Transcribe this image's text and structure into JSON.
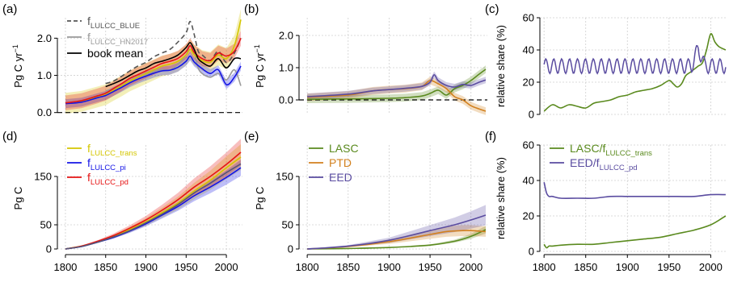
{
  "chart_data": [
    {
      "panel": "(a)",
      "type": "line",
      "ylabel": "Pg C yr",
      "ylabel_sup": "−1",
      "xlim": [
        1790,
        2020
      ],
      "ylim": [
        -0.05,
        2.55
      ],
      "yticks": [
        0.0,
        1.0,
        2.0
      ],
      "ytick_labels": [
        "0.0",
        "1.0",
        "2.0"
      ],
      "xticks": [],
      "grid": true,
      "hline_zero": true,
      "legend": [
        {
          "main": "f",
          "sub": "LULCC_BLUE",
          "style": "dashed",
          "color": "#555555",
          "text_color": "#555555"
        },
        {
          "main": "f",
          "sub": "LULCC_HN2017",
          "style": "solid",
          "color": "#9a9a9a",
          "text_color": "#9a9a9a"
        },
        {
          "main": "book mean",
          "sub": "",
          "style": "solid",
          "color": "#000000",
          "text_color": "#000000"
        }
      ],
      "series": [
        {
          "name": "fLULCC_BLUE",
          "color": "#555555",
          "dash": true,
          "x": [
            1850,
            1860,
            1870,
            1880,
            1890,
            1900,
            1910,
            1920,
            1930,
            1940,
            1950,
            1955,
            1960,
            1965,
            1970,
            1980,
            1990,
            2000,
            2010,
            2018
          ],
          "y": [
            0.78,
            0.85,
            0.98,
            1.12,
            1.25,
            1.35,
            1.5,
            1.6,
            1.7,
            1.9,
            2.15,
            2.45,
            2.1,
            1.65,
            1.55,
            1.4,
            1.65,
            1.35,
            1.6,
            2.0
          ]
        },
        {
          "name": "fLULCC_HN2017",
          "color": "#9a9a9a",
          "x": [
            1850,
            1860,
            1870,
            1880,
            1890,
            1900,
            1910,
            1920,
            1930,
            1940,
            1950,
            1955,
            1960,
            1965,
            1970,
            1980,
            1990,
            2000,
            2010,
            2018
          ],
          "y": [
            0.58,
            0.65,
            0.72,
            0.82,
            0.95,
            1.02,
            1.1,
            1.15,
            1.15,
            1.3,
            1.55,
            1.8,
            1.6,
            1.2,
            1.05,
            0.95,
            1.05,
            0.88,
            1.15,
            0.72
          ]
        },
        {
          "name": "fLULCC_trans",
          "color": "#d4c600",
          "band": 0.28,
          "x": [
            1800,
            1820,
            1840,
            1850,
            1860,
            1870,
            1880,
            1890,
            1900,
            1910,
            1920,
            1930,
            1940,
            1950,
            1955,
            1960,
            1970,
            1980,
            1990,
            2000,
            2010,
            2018
          ],
          "y": [
            0.25,
            0.3,
            0.42,
            0.48,
            0.6,
            0.72,
            0.85,
            0.95,
            1.05,
            1.15,
            1.25,
            1.3,
            1.38,
            1.55,
            1.7,
            1.55,
            1.4,
            1.35,
            1.55,
            1.45,
            1.8,
            2.5
          ]
        },
        {
          "name": "fLULCC_pi",
          "color": "#1414e6",
          "band": 0.12,
          "x": [
            1800,
            1820,
            1840,
            1850,
            1860,
            1870,
            1880,
            1890,
            1900,
            1910,
            1920,
            1930,
            1940,
            1950,
            1955,
            1960,
            1970,
            1980,
            1990,
            2000,
            2010,
            2018
          ],
          "y": [
            0.24,
            0.28,
            0.4,
            0.46,
            0.57,
            0.68,
            0.8,
            0.9,
            0.98,
            1.06,
            1.12,
            1.14,
            1.22,
            1.38,
            1.52,
            1.36,
            1.18,
            1.05,
            1.15,
            0.75,
            0.95,
            1.25
          ]
        },
        {
          "name": "fLULCC_pd",
          "color": "#e61414",
          "band": 0.2,
          "x": [
            1800,
            1820,
            1840,
            1850,
            1860,
            1870,
            1880,
            1890,
            1900,
            1910,
            1920,
            1930,
            1940,
            1950,
            1955,
            1960,
            1970,
            1980,
            1990,
            2000,
            2010,
            2018
          ],
          "y": [
            0.26,
            0.32,
            0.45,
            0.52,
            0.65,
            0.78,
            0.92,
            1.02,
            1.12,
            1.22,
            1.32,
            1.38,
            1.46,
            1.64,
            1.8,
            1.62,
            1.45,
            1.4,
            1.6,
            1.52,
            1.65,
            2.0
          ]
        },
        {
          "name": "book mean",
          "color": "#000000",
          "x": [
            1850,
            1860,
            1870,
            1880,
            1890,
            1900,
            1910,
            1920,
            1930,
            1940,
            1950,
            1955,
            1960,
            1965,
            1970,
            1980,
            1990,
            2000,
            2010,
            2018
          ],
          "y": [
            0.7,
            0.78,
            0.88,
            1.0,
            1.12,
            1.2,
            1.32,
            1.38,
            1.45,
            1.55,
            1.75,
            1.88,
            1.7,
            1.45,
            1.35,
            1.25,
            1.45,
            1.2,
            1.45,
            1.45
          ]
        }
      ]
    },
    {
      "panel": "(b)",
      "type": "line",
      "ylabel": "Pg C yr",
      "ylabel_sup": "−1",
      "xlim": [
        1790,
        2020
      ],
      "ylim": [
        -0.45,
        2.55
      ],
      "yticks": [
        0.0,
        1.0,
        2.0
      ],
      "ytick_labels": [
        "0.0",
        "1.0",
        "2.0"
      ],
      "xticks": [],
      "grid": true,
      "hline_zero": true,
      "legend": [],
      "series": [
        {
          "name": "LASC",
          "color": "#5a8a1e",
          "band": 0.12,
          "x": [
            1800,
            1850,
            1900,
            1920,
            1940,
            1950,
            1960,
            1970,
            1980,
            1990,
            2000,
            2010,
            2018
          ],
          "y": [
            0.02,
            0.03,
            0.05,
            0.07,
            0.12,
            0.2,
            0.3,
            0.15,
            0.35,
            0.45,
            0.6,
            0.8,
            0.95
          ]
        },
        {
          "name": "PTD",
          "color": "#d2801e",
          "band": 0.12,
          "x": [
            1800,
            1850,
            1880,
            1900,
            1920,
            1940,
            1950,
            1960,
            1970,
            1980,
            1990,
            2000,
            2010,
            2018
          ],
          "y": [
            0.08,
            0.15,
            0.28,
            0.32,
            0.35,
            0.42,
            0.6,
            0.5,
            0.35,
            0.1,
            0.0,
            -0.18,
            -0.28,
            -0.35
          ]
        },
        {
          "name": "EED",
          "color": "#5a4ca0",
          "band": 0.1,
          "x": [
            1800,
            1850,
            1880,
            1900,
            1920,
            1940,
            1950,
            1955,
            1960,
            1970,
            1980,
            1990,
            2000,
            2010,
            2018
          ],
          "y": [
            0.1,
            0.18,
            0.28,
            0.32,
            0.36,
            0.42,
            0.55,
            0.78,
            0.6,
            0.45,
            0.4,
            0.48,
            0.45,
            0.55,
            0.62
          ]
        }
      ]
    },
    {
      "panel": "(c)",
      "type": "line",
      "ylabel": "relative share (%)",
      "xlim": [
        1795,
        2020
      ],
      "ylim": [
        0,
        60
      ],
      "yticks": [
        0,
        20,
        40,
        60
      ],
      "ytick_labels": [
        "0",
        "20",
        "40",
        "60"
      ],
      "xticks": [],
      "grid": true,
      "legend": [],
      "series": [
        {
          "name": "LASC share",
          "color": "#5a8a1e",
          "x": [
            1800,
            1810,
            1820,
            1830,
            1840,
            1850,
            1860,
            1870,
            1880,
            1890,
            1900,
            1910,
            1920,
            1930,
            1940,
            1950,
            1955,
            1960,
            1965,
            1970,
            1975,
            1980,
            1985,
            1990,
            1995,
            2000,
            2005,
            2010,
            2018
          ],
          "y": [
            2,
            6,
            4,
            6,
            5,
            4,
            7,
            8,
            9,
            11,
            12,
            14,
            15,
            16,
            18,
            21,
            19,
            17,
            19,
            24,
            26,
            28,
            30,
            32,
            40,
            50,
            45,
            42,
            40
          ]
        },
        {
          "name": "EED share",
          "color": "#5a4ca0",
          "periodic": true,
          "x0": 1800,
          "x1": 2018,
          "base": 31,
          "amp": 4.5,
          "period": 9.5,
          "bump_x": 1985,
          "bump_y": 42
        }
      ]
    },
    {
      "panel": "(d)",
      "type": "line",
      "ylabel": "Pg C",
      "xlim": [
        1790,
        2020
      ],
      "ylim": [
        -5,
        215
      ],
      "yticks": [
        0,
        50,
        150
      ],
      "ytick_labels": [
        "0",
        "50",
        "150"
      ],
      "xticks": [
        1800,
        1850,
        1900,
        1950,
        2000
      ],
      "xtick_labels": [
        "1800",
        "1850",
        "1900",
        "1950",
        "2000"
      ],
      "grid": true,
      "legend": [
        {
          "main": "f",
          "sub": "LULCC_trans",
          "style": "solid",
          "color": "#d4c600",
          "text_color": "#d4c600"
        },
        {
          "main": "f",
          "sub": "LULCC_pi",
          "style": "solid",
          "color": "#1414e6",
          "text_color": "#1414e6"
        },
        {
          "main": "f",
          "sub": "LULCC_pd",
          "style": "solid",
          "color": "#e61414",
          "text_color": "#e61414"
        }
      ],
      "series": [
        {
          "name": "fLULCC_trans",
          "color": "#d4c600",
          "band_frac": 0.14,
          "x": [
            1800,
            1820,
            1840,
            1860,
            1880,
            1900,
            1920,
            1940,
            1960,
            1980,
            2000,
            2018
          ],
          "y": [
            0,
            6,
            15,
            26,
            40,
            56,
            75,
            95,
            120,
            142,
            168,
            190
          ]
        },
        {
          "name": "fLULCC_pi",
          "color": "#1414e6",
          "band_frac": 0.1,
          "x": [
            1800,
            1820,
            1840,
            1860,
            1880,
            1900,
            1920,
            1940,
            1960,
            1980,
            2000,
            2018
          ],
          "y": [
            0,
            5,
            14,
            24,
            37,
            52,
            70,
            88,
            110,
            128,
            148,
            168
          ]
        },
        {
          "name": "fLULCC_pd",
          "color": "#e61414",
          "band_frac": 0.14,
          "x": [
            1800,
            1820,
            1840,
            1860,
            1880,
            1900,
            1920,
            1940,
            1960,
            1980,
            2000,
            2018
          ],
          "y": [
            0,
            6,
            16,
            28,
            43,
            60,
            80,
            102,
            128,
            150,
            175,
            200
          ]
        },
        {
          "name": "mean",
          "color": "#555577",
          "x": [
            1800,
            1820,
            1840,
            1860,
            1880,
            1900,
            1920,
            1940,
            1960,
            1980,
            2000,
            2018
          ],
          "y": [
            0,
            5,
            14,
            25,
            38,
            54,
            72,
            92,
            116,
            136,
            158,
            176
          ]
        }
      ]
    },
    {
      "panel": "(e)",
      "type": "line",
      "ylabel": "Pg C",
      "xlim": [
        1790,
        2020
      ],
      "ylim": [
        -5,
        215
      ],
      "yticks": [
        0,
        50,
        150
      ],
      "ytick_labels": [
        "0",
        "50",
        "150"
      ],
      "xticks": [
        1800,
        1850,
        1900,
        1950,
        2000
      ],
      "xtick_labels": [
        "1800",
        "1850",
        "1900",
        "1950",
        "2000"
      ],
      "grid": true,
      "legend": [
        {
          "main": "LASC",
          "sub": "",
          "style": "solid",
          "color": "#5a8a1e",
          "text_color": "#5a8a1e"
        },
        {
          "main": "PTD",
          "sub": "",
          "style": "solid",
          "color": "#d2801e",
          "text_color": "#d2801e"
        },
        {
          "main": "EED",
          "sub": "",
          "style": "solid",
          "color": "#5a4ca0",
          "text_color": "#5a4ca0"
        }
      ],
      "series": [
        {
          "name": "LASC",
          "color": "#5a8a1e",
          "band_frac": 0.2,
          "x": [
            1800,
            1850,
            1900,
            1950,
            1980,
            2000,
            2018
          ],
          "y": [
            0,
            1,
            3,
            8,
            16,
            26,
            40
          ]
        },
        {
          "name": "PTD",
          "color": "#d2801e",
          "band_frac": 0.3,
          "x": [
            1800,
            1850,
            1900,
            1950,
            1970,
            1990,
            2000,
            2018
          ],
          "y": [
            0,
            5,
            15,
            30,
            36,
            38,
            38,
            36
          ]
        },
        {
          "name": "EED",
          "color": "#5a4ca0",
          "band_frac": 0.3,
          "x": [
            1800,
            1850,
            1900,
            1950,
            1980,
            2000,
            2018
          ],
          "y": [
            0,
            6,
            18,
            38,
            50,
            60,
            70
          ]
        }
      ]
    },
    {
      "panel": "(f)",
      "type": "line",
      "ylabel": "relative share (%)",
      "xlim": [
        1795,
        2020
      ],
      "ylim": [
        0,
        60
      ],
      "yticks": [
        0,
        20,
        40,
        60
      ],
      "ytick_labels": [
        "0",
        "20",
        "40",
        "60"
      ],
      "xticks": [
        1800,
        1850,
        1900,
        1950,
        2000
      ],
      "xtick_labels": [
        "1800",
        "1850",
        "1900",
        "1950",
        "2000"
      ],
      "grid": true,
      "legend": [
        {
          "main": "LASC/f",
          "sub": "LULCC_trans",
          "style": "solid",
          "color": "#5a8a1e",
          "text_color": "#5a8a1e"
        },
        {
          "main": "EED/f",
          "sub": "LULCC_pd",
          "style": "solid",
          "color": "#5a4ca0",
          "text_color": "#5a4ca0"
        }
      ],
      "series": [
        {
          "name": "LASC/fLULCC_trans",
          "color": "#5a8a1e",
          "x": [
            1800,
            1803,
            1806,
            1810,
            1820,
            1840,
            1860,
            1880,
            1900,
            1920,
            1940,
            1960,
            1980,
            2000,
            2018
          ],
          "y": [
            4,
            2,
            3,
            3,
            3.5,
            4,
            4,
            5,
            6,
            7,
            8,
            10,
            12,
            15,
            20
          ]
        },
        {
          "name": "EED/fLULCC_pd",
          "color": "#5a4ca0",
          "x": [
            1800,
            1803,
            1806,
            1810,
            1820,
            1840,
            1860,
            1880,
            1900,
            1920,
            1940,
            1960,
            1980,
            2000,
            2018
          ],
          "y": [
            39,
            33,
            31,
            31,
            30,
            30,
            30,
            31,
            31,
            31,
            31,
            31,
            31,
            32,
            32
          ]
        }
      ]
    }
  ]
}
